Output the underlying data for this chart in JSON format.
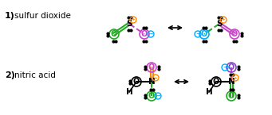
{
  "bg_color": "#ffffff",
  "label1": "1)",
  "label2": "2)",
  "name1": "sulfur dioxide",
  "name2": "nitric acid",
  "arrow_color": "#000000"
}
